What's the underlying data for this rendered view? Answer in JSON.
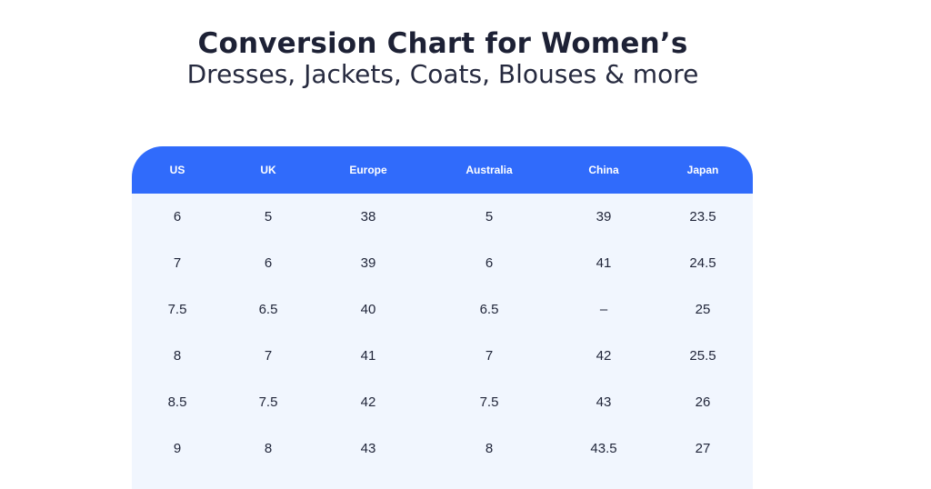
{
  "title": "Conversion Chart for Women’s",
  "subtitle": "Dresses, Jackets, Coats, Blouses & more",
  "table": {
    "headers": [
      "US",
      "UK",
      "Europe",
      "Australia",
      "China",
      "Japan"
    ],
    "rows": [
      [
        "6",
        "5",
        "38",
        "5",
        "39",
        "23.5"
      ],
      [
        "7",
        "6",
        "39",
        "6",
        "41",
        "24.5"
      ],
      [
        "7.5",
        "6.5",
        "40",
        "6.5",
        "–",
        "25"
      ],
      [
        "8",
        "7",
        "41",
        "7",
        "42",
        "25.5"
      ],
      [
        "8.5",
        "7.5",
        "42",
        "7.5",
        "43",
        "26"
      ],
      [
        "9",
        "8",
        "43",
        "8",
        "43.5",
        "27"
      ]
    ]
  },
  "colors": {
    "header": "#306bfb",
    "table_body": "#f1f6fe",
    "text": "#1f2438"
  }
}
